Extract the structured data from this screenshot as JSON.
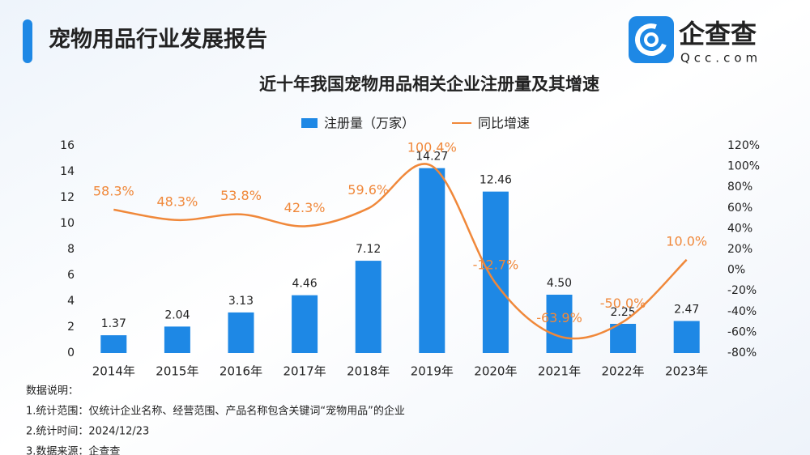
{
  "header": {
    "title": "宠物用品行业发展报告",
    "logo_text": "企查查",
    "logo_url": "Qcc.com"
  },
  "notes": [
    "数据说明：",
    "1.统计范围：仅统计企业名称、经营范围、产品名称包含关键词“宠物用品”的企业",
    "2.统计时间：2024/12/23",
    "3.数据来源：企查查"
  ],
  "chart_data": {
    "type": "bar",
    "title": "近十年我国宠物用品相关企业注册量及其增速",
    "categories": [
      "2014年",
      "2015年",
      "2016年",
      "2017年",
      "2018年",
      "2019年",
      "2020年",
      "2021年",
      "2022年",
      "2023年"
    ],
    "series": [
      {
        "name": "注册量（万家）",
        "type": "bar",
        "color": "#1e88e5",
        "values": [
          1.37,
          2.04,
          3.13,
          4.46,
          7.12,
          14.27,
          12.46,
          4.5,
          2.25,
          2.47
        ],
        "value_labels": [
          "1.37",
          "2.04",
          "3.13",
          "4.46",
          "7.12",
          "14.27",
          "12.46",
          "4.50",
          "2.25",
          "2.47"
        ]
      },
      {
        "name": "同比增速",
        "type": "line",
        "axis": "y2",
        "color": "#f0883a",
        "values": [
          58.3,
          48.3,
          53.8,
          42.3,
          59.6,
          100.4,
          -12.7,
          -63.9,
          -50.0,
          10.0
        ],
        "value_labels": [
          "58.3%",
          "48.3%",
          "53.8%",
          "42.3%",
          "59.6%",
          "100.4%",
          "-12.7%",
          "-63.9%",
          "-50.0%",
          "10.0%"
        ]
      }
    ],
    "ylim": [
      0,
      16
    ],
    "yticks": [
      0,
      2,
      4,
      6,
      8,
      10,
      12,
      14,
      16
    ],
    "y2lim": [
      -80,
      120
    ],
    "y2ticks": [
      {
        "value": -80,
        "label": "-80%"
      },
      {
        "value": -60,
        "label": "-60%"
      },
      {
        "value": -40,
        "label": "-40%"
      },
      {
        "value": -20,
        "label": "-20%"
      },
      {
        "value": 0,
        "label": "0%"
      },
      {
        "value": 20,
        "label": "20%"
      },
      {
        "value": 40,
        "label": "40%"
      },
      {
        "value": 60,
        "label": "60%"
      },
      {
        "value": 80,
        "label": "80%"
      },
      {
        "value": 100,
        "label": "100%"
      },
      {
        "value": 120,
        "label": "120%"
      }
    ],
    "legend": "top",
    "grid": false
  }
}
